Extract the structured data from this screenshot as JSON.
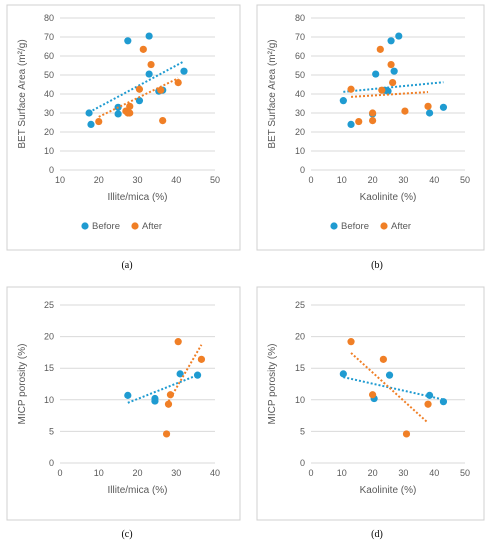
{
  "colors": {
    "before": "#1f9bd1",
    "after": "#f07f26"
  },
  "chart_data": [
    {
      "type": "scatter",
      "panel_label": "(a)",
      "xlabel": "Illite/mica (%)",
      "ylabel": "BET Surface Area (m²/g)",
      "xlim": [
        10,
        50
      ],
      "ylim": [
        0,
        80
      ],
      "xticks": [
        "10",
        "20",
        "30",
        "40",
        "50"
      ],
      "yticks": [
        "0",
        "10",
        "20",
        "30",
        "40",
        "50",
        "60",
        "70",
        "80"
      ],
      "grid": true,
      "legend_position": "bottom",
      "legend": [
        "Before",
        "After"
      ],
      "series": [
        {
          "name": "Before",
          "trendline": "linear",
          "x": [
            17.5,
            18,
            25,
            25,
            27.5,
            30.5,
            33,
            33,
            35.5,
            36.5,
            42
          ],
          "y": [
            30,
            24,
            33,
            29.5,
            68,
            36.5,
            70.5,
            50.5,
            41.5,
            42,
            52
          ]
        },
        {
          "name": "After",
          "trendline": "linear",
          "x": [
            20,
            27,
            27.5,
            28,
            28,
            30.5,
            31.5,
            33.5,
            36,
            36.5,
            40.5
          ],
          "y": [
            25.5,
            31,
            30,
            30,
            33.5,
            42.5,
            63.5,
            55.5,
            42,
            26,
            46
          ]
        }
      ]
    },
    {
      "type": "scatter",
      "panel_label": "(b)",
      "xlabel": "Kaolinite (%)",
      "ylabel": "BET Surface Area (m²/g)",
      "xlim": [
        0,
        50
      ],
      "ylim": [
        0,
        80
      ],
      "xticks": [
        "0",
        "10",
        "20",
        "30",
        "40",
        "50"
      ],
      "yticks": [
        "0",
        "10",
        "20",
        "30",
        "40",
        "50",
        "60",
        "70",
        "80"
      ],
      "grid": true,
      "legend_position": "bottom",
      "legend": [
        "Before",
        "After"
      ],
      "series": [
        {
          "name": "Before",
          "trendline": "linear",
          "x": [
            10.5,
            13,
            20,
            21,
            24,
            25,
            26,
            27,
            28.5,
            38.5,
            43
          ],
          "y": [
            36.5,
            24,
            29.5,
            50.5,
            42,
            41.5,
            68,
            52,
            70.5,
            30,
            33
          ]
        },
        {
          "name": "After",
          "trendline": "linear",
          "x": [
            13,
            15.5,
            20,
            20,
            22.5,
            23,
            26,
            26.5,
            30.5,
            38
          ],
          "y": [
            42.5,
            25.5,
            30,
            26,
            63.5,
            42,
            55.5,
            46,
            31,
            33.5
          ]
        }
      ]
    },
    {
      "type": "scatter",
      "panel_label": "(c)",
      "xlabel": "Illite/mica (%)",
      "ylabel": "MICP porosity (%)",
      "xlim": [
        0,
        40
      ],
      "ylim": [
        0,
        25
      ],
      "xticks": [
        "0",
        "10",
        "20",
        "30",
        "40"
      ],
      "yticks": [
        "0",
        "5",
        "10",
        "15",
        "20",
        "25"
      ],
      "grid": true,
      "series": [
        {
          "name": "Before",
          "trendline": "linear",
          "x": [
            17.5,
            24.5,
            24.5,
            31,
            35.5
          ],
          "y": [
            10.7,
            9.8,
            10.2,
            14.1,
            13.9
          ]
        },
        {
          "name": "After",
          "trendline": "linear",
          "x": [
            27.5,
            28,
            28.5,
            30.5,
            36.5
          ],
          "y": [
            4.6,
            9.3,
            10.8,
            19.2,
            16.4
          ]
        }
      ]
    },
    {
      "type": "scatter",
      "panel_label": "(d)",
      "xlabel": "Kaolinite (%)",
      "ylabel": "MICP porosity (%)",
      "xlim": [
        0,
        50
      ],
      "ylim": [
        0,
        25
      ],
      "xticks": [
        "0",
        "10",
        "20",
        "30",
        "40",
        "50"
      ],
      "yticks": [
        "0",
        "5",
        "10",
        "15",
        "20",
        "25"
      ],
      "grid": true,
      "series": [
        {
          "name": "Before",
          "trendline": "linear",
          "x": [
            10.5,
            20.5,
            25.5,
            38.5,
            43
          ],
          "y": [
            14.1,
            10.2,
            13.9,
            10.7,
            9.7
          ]
        },
        {
          "name": "After",
          "trendline": "linear",
          "x": [
            13,
            20,
            23.5,
            31,
            38
          ],
          "y": [
            19.2,
            10.8,
            16.4,
            4.6,
            9.3
          ]
        }
      ]
    }
  ]
}
